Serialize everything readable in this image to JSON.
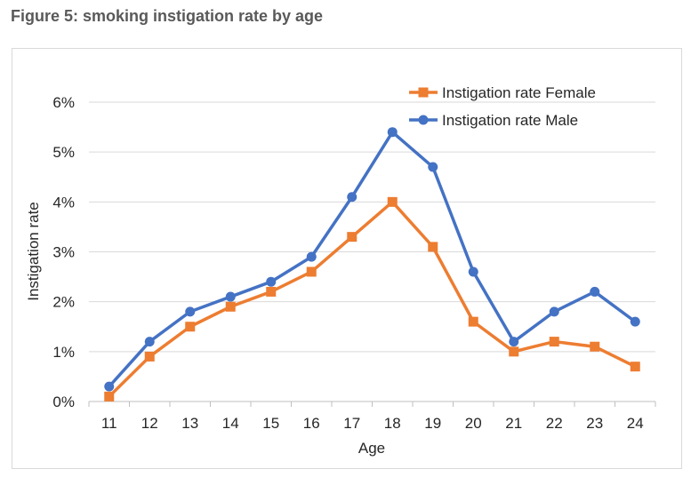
{
  "figure_title": "Figure 5: smoking instigation rate by age",
  "colors": {
    "female": "#ED7D31",
    "male": "#4472C4",
    "grid": "#d9d9d9",
    "axis": "#bfbfbf"
  },
  "chart_data": {
    "type": "line",
    "title": "",
    "xlabel": "Age",
    "ylabel": "Instigation rate",
    "x": [
      "11",
      "12",
      "13",
      "14",
      "15",
      "16",
      "17",
      "18",
      "19",
      "20",
      "21",
      "22",
      "23",
      "24"
    ],
    "ylim": [
      0,
      6
    ],
    "yticks": [
      0,
      1,
      2,
      3,
      4,
      5,
      6
    ],
    "ytick_labels": [
      "0%",
      "1%",
      "2%",
      "3%",
      "4%",
      "5%",
      "6%"
    ],
    "grid": true,
    "legend": "top-right",
    "series": [
      {
        "name": "Instigation rate Female",
        "marker": "square",
        "color": "#ED7D31",
        "values": [
          0.1,
          0.9,
          1.5,
          1.9,
          2.2,
          2.6,
          3.3,
          4.0,
          3.1,
          1.6,
          1.0,
          1.2,
          1.1,
          0.7
        ]
      },
      {
        "name": "Instigation rate Male",
        "marker": "circle",
        "color": "#4472C4",
        "values": [
          0.3,
          1.2,
          1.8,
          2.1,
          2.4,
          2.9,
          4.1,
          5.4,
          4.7,
          2.6,
          1.2,
          1.8,
          2.2,
          1.6
        ]
      }
    ]
  }
}
